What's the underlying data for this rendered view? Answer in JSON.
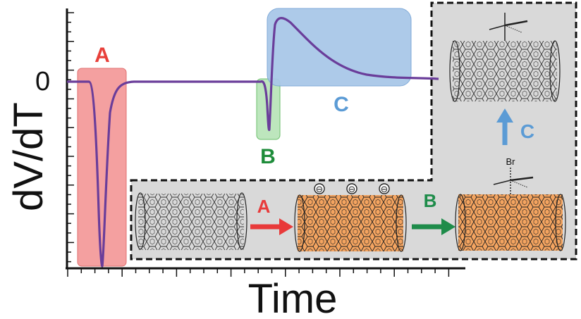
{
  "axes": {
    "y_label": "dV/dT",
    "y_zero_label": "0",
    "x_label": "Time"
  },
  "regions": [
    {
      "id": "A",
      "label": "A",
      "color": "#f08080"
    },
    {
      "id": "B",
      "label": "B",
      "color": "#8fd68f"
    },
    {
      "id": "C",
      "label": "C",
      "color": "#7fb0e0"
    }
  ],
  "colors": {
    "curve": "#6a3d9a",
    "label_a": "#e8403a",
    "label_b": "#1e8c3a",
    "label_c": "#5b9bd5",
    "inset_bg": "#d9d9d9",
    "nanotube_orange": "#f4a460",
    "arrow_a": "#e83a3a",
    "arrow_b": "#1e8c4a",
    "arrow_c": "#5b9bd5"
  },
  "scheme": {
    "step_a_label": "A",
    "step_b_label": "B",
    "step_c_label": "C",
    "charge_symbols": [
      "⊖",
      "⊖",
      "⊖"
    ],
    "substituent_label": "Br"
  },
  "icons": {
    "nanotube": "nanotube-icon",
    "charge": "negative-charge-icon",
    "arrow": "arrow-icon"
  }
}
